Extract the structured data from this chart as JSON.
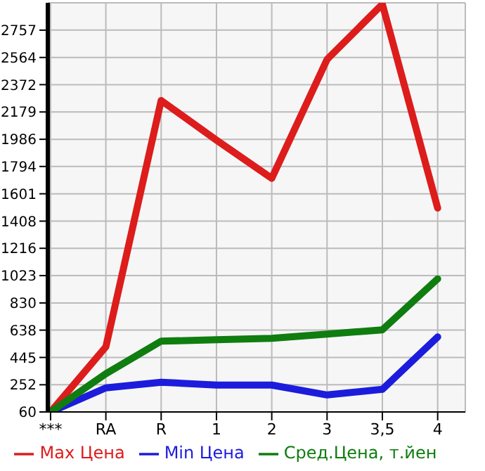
{
  "chart_data": {
    "type": "line",
    "categories": [
      "***",
      "RA",
      "R",
      "1",
      "2",
      "3",
      "3,5",
      "4"
    ],
    "series": [
      {
        "name": "Max Цена",
        "color": "#dd1c1c",
        "values": [
          60,
          520,
          2260,
          1980,
          1710,
          2550,
          2940,
          1500
        ]
      },
      {
        "name": "Min Цена",
        "color": "#1c1cdd",
        "values": [
          60,
          230,
          270,
          250,
          250,
          180,
          220,
          590
        ]
      },
      {
        "name": "Сред.Цена, т.йен",
        "color": "#0f7d0f",
        "values": [
          60,
          330,
          560,
          570,
          580,
          610,
          640,
          1000
        ]
      }
    ],
    "ylim": [
      60,
      2950
    ],
    "yticks": [
      60,
      252,
      445,
      638,
      830,
      1023,
      1216,
      1408,
      1601,
      1794,
      1986,
      2179,
      2372,
      2564,
      2757
    ],
    "grid": true,
    "legend": "bottom",
    "marker": "none",
    "line_style": "solid"
  }
}
